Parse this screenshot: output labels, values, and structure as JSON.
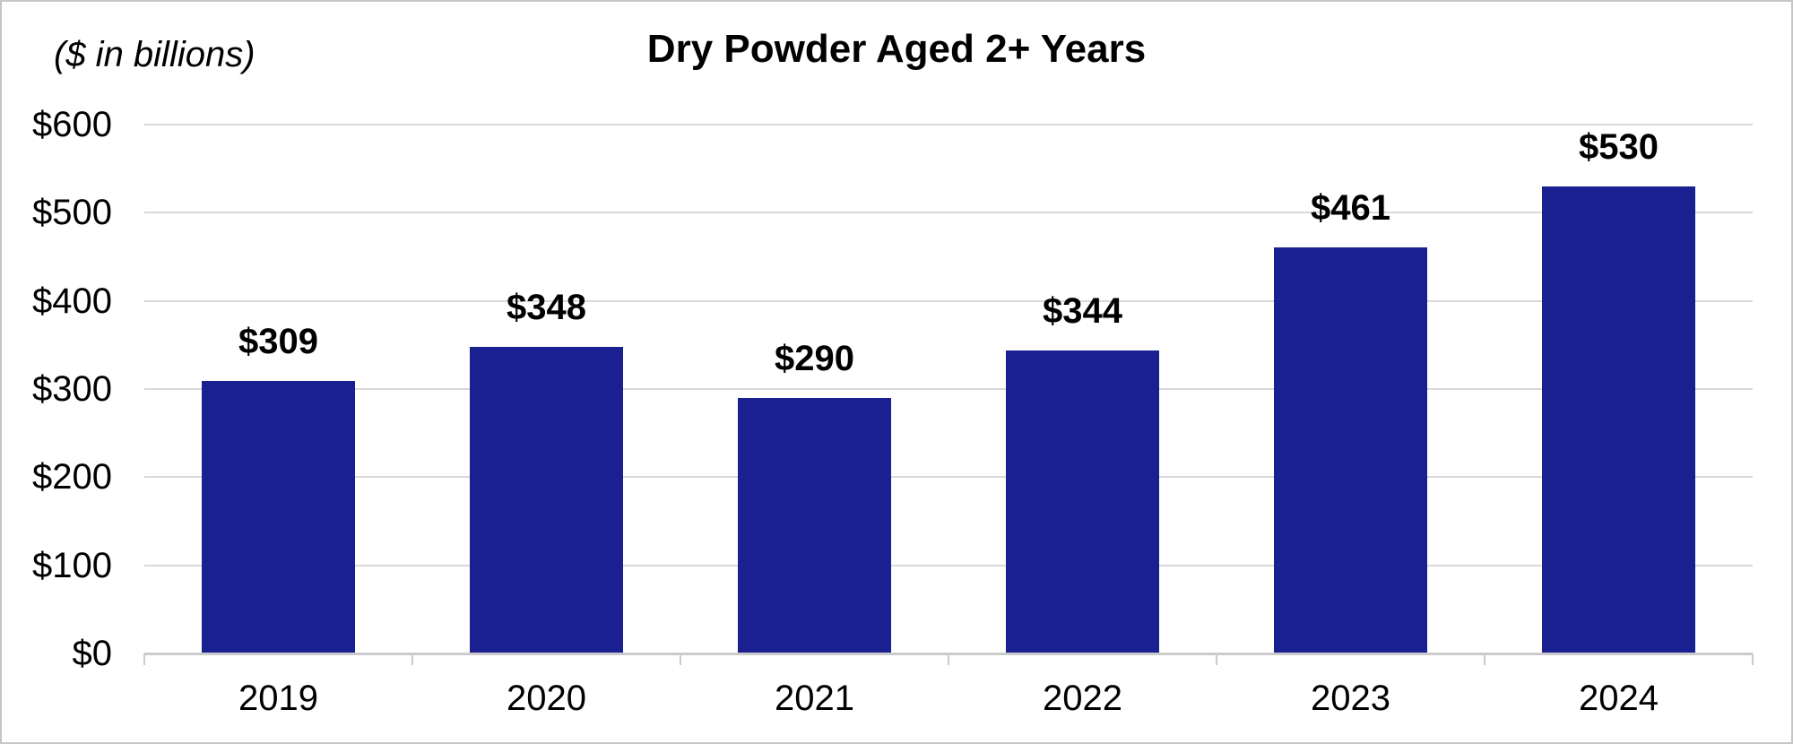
{
  "header": {
    "units_label": "($ in billions)",
    "title": "Dry Powder Aged 2+ Years"
  },
  "chart_data": {
    "type": "bar",
    "title": "Dry Powder Aged 2+ Years",
    "subtitle_units": "($ in billions)",
    "categories": [
      "2019",
      "2020",
      "2021",
      "2022",
      "2023",
      "2024"
    ],
    "values": [
      309,
      348,
      290,
      344,
      461,
      530
    ],
    "value_labels": [
      "$309",
      "$348",
      "$290",
      "$344",
      "$461",
      "$530"
    ],
    "xlabel": "",
    "ylabel": "($ in billions)",
    "ylim": [
      0,
      600
    ],
    "ytick_interval": 100,
    "ytick_labels": [
      "$0",
      "$100",
      "$200",
      "$300",
      "$400",
      "$500",
      "$600"
    ],
    "grid": true,
    "legend": false,
    "colors": {
      "bar": "#1B2090",
      "gridline": "#D9D9D9",
      "axis_line": "#CBCBCB",
      "text": "#000000",
      "background": "#FFFFFF",
      "canvas_border": "#C6C6C6"
    }
  }
}
